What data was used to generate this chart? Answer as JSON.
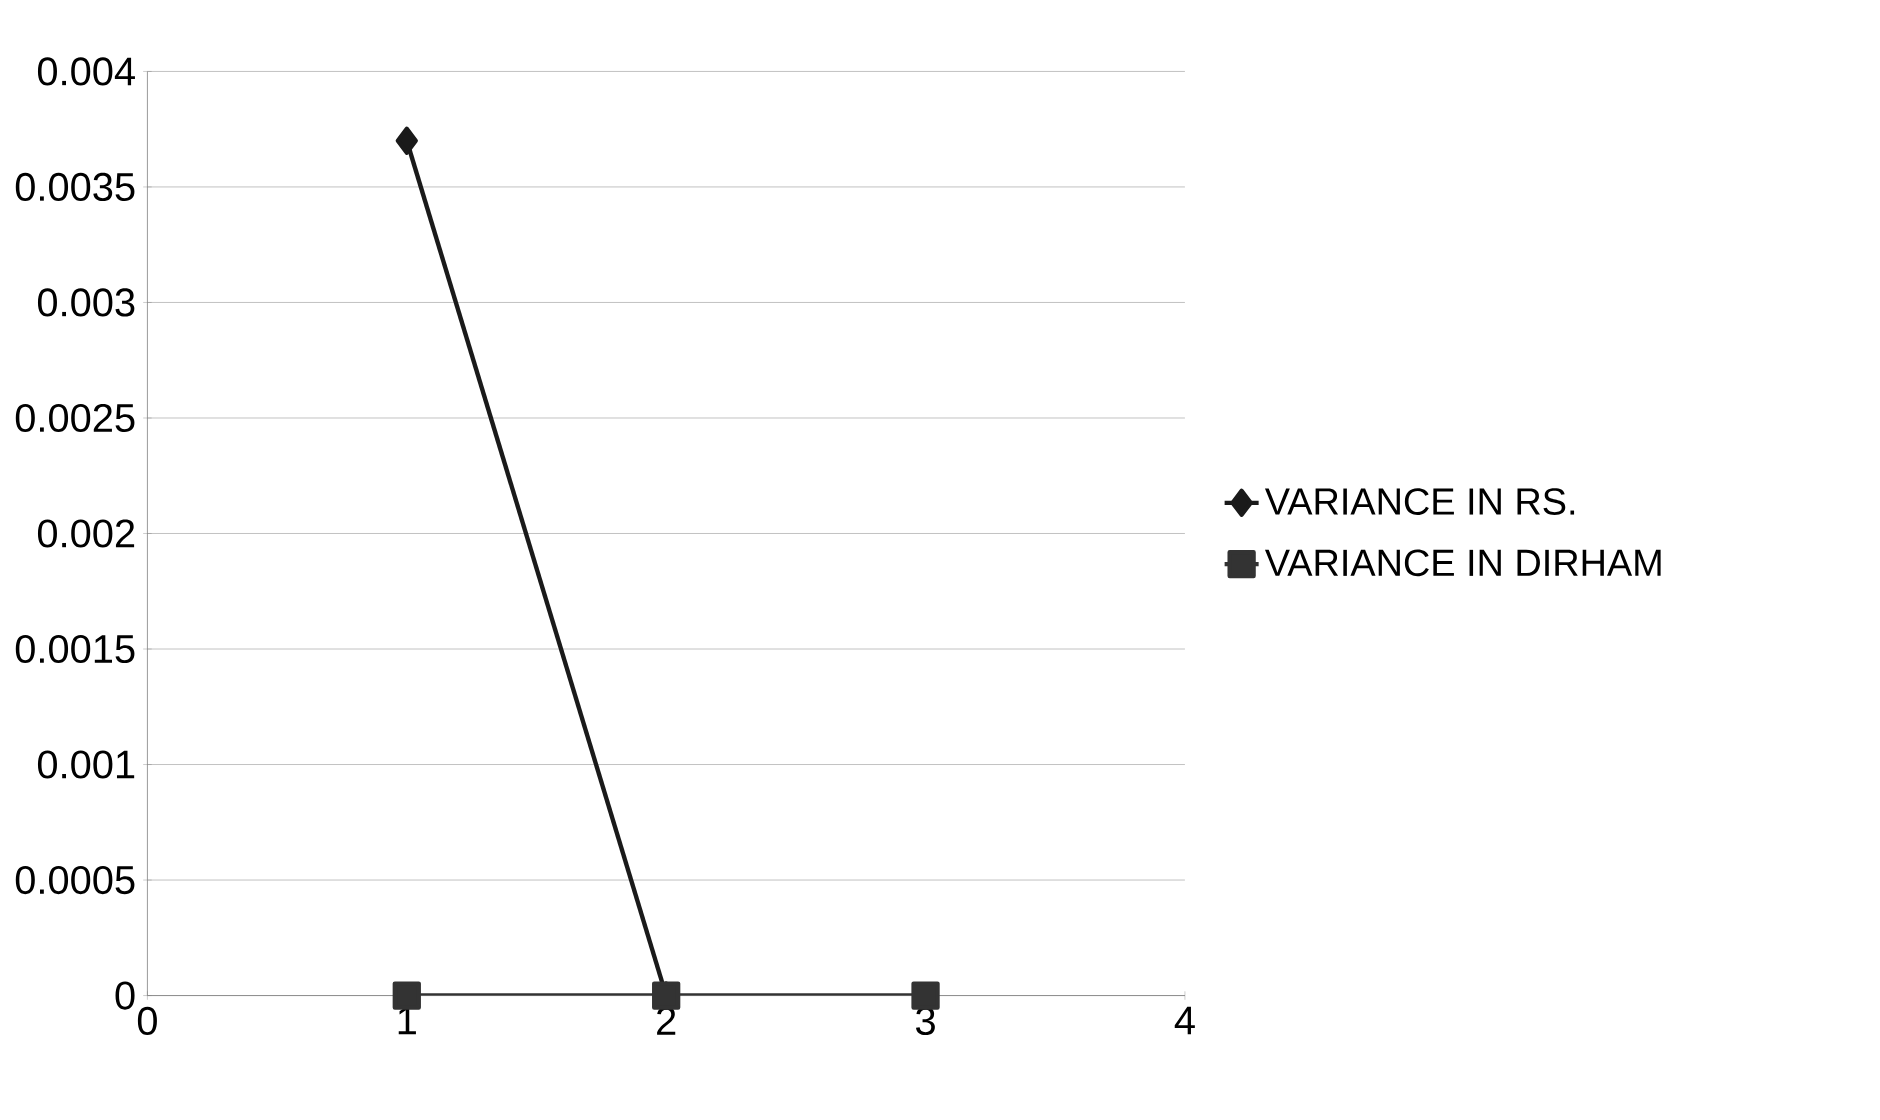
{
  "chart_data": {
    "type": "line",
    "x": [
      1,
      2,
      3
    ],
    "series": [
      {
        "name": "VARIANCE IN RS.",
        "color": "#1a1a1a",
        "marker": "diamond",
        "values": [
          0.0037,
          0,
          null
        ]
      },
      {
        "name": "VARIANCE IN DIRHAM",
        "color": "#333333",
        "marker": "square",
        "values": [
          0,
          0,
          0
        ]
      }
    ],
    "xlim": [
      0,
      4
    ],
    "xticks": [
      0,
      1,
      2,
      3,
      4
    ],
    "ylim": [
      0,
      0.004
    ],
    "yticks": [
      0,
      0.0005,
      0.001,
      0.0015,
      0.002,
      0.0025,
      0.003,
      0.0035,
      0.004
    ],
    "grid": "y",
    "legend": "right",
    "line_style": "solid"
  }
}
